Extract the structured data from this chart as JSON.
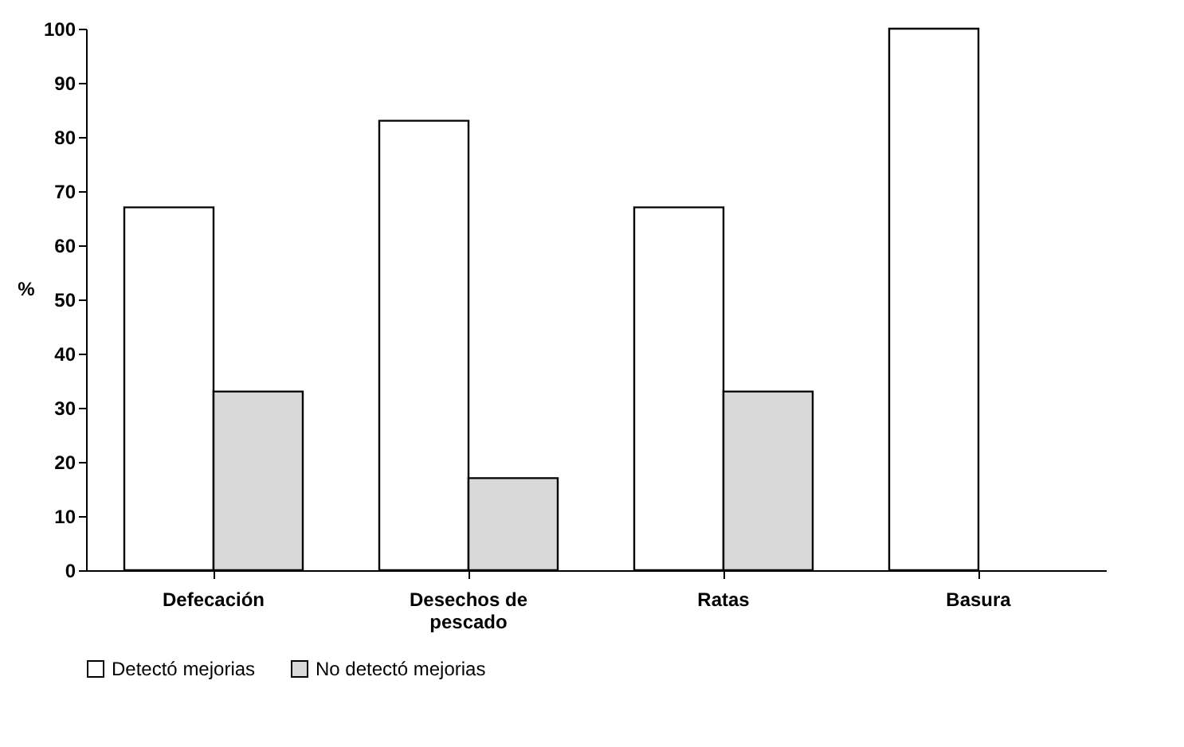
{
  "chart_data": {
    "type": "bar",
    "ylabel": "%",
    "categories": [
      "Defecación",
      "Desechos de pescado",
      "Ratas",
      "Basura"
    ],
    "series": [
      {
        "name": "Detectó mejorias",
        "color": "#ffffff",
        "values": [
          67,
          83,
          67,
          100
        ]
      },
      {
        "name": "No detectó mejorias",
        "color": "#d9d9d9",
        "values": [
          33,
          17,
          33,
          0
        ]
      }
    ],
    "ylim": [
      0,
      100
    ],
    "yticks": [
      0,
      10,
      20,
      30,
      40,
      50,
      60,
      70,
      80,
      90,
      100
    ],
    "grid": false,
    "legend": "bottom"
  }
}
